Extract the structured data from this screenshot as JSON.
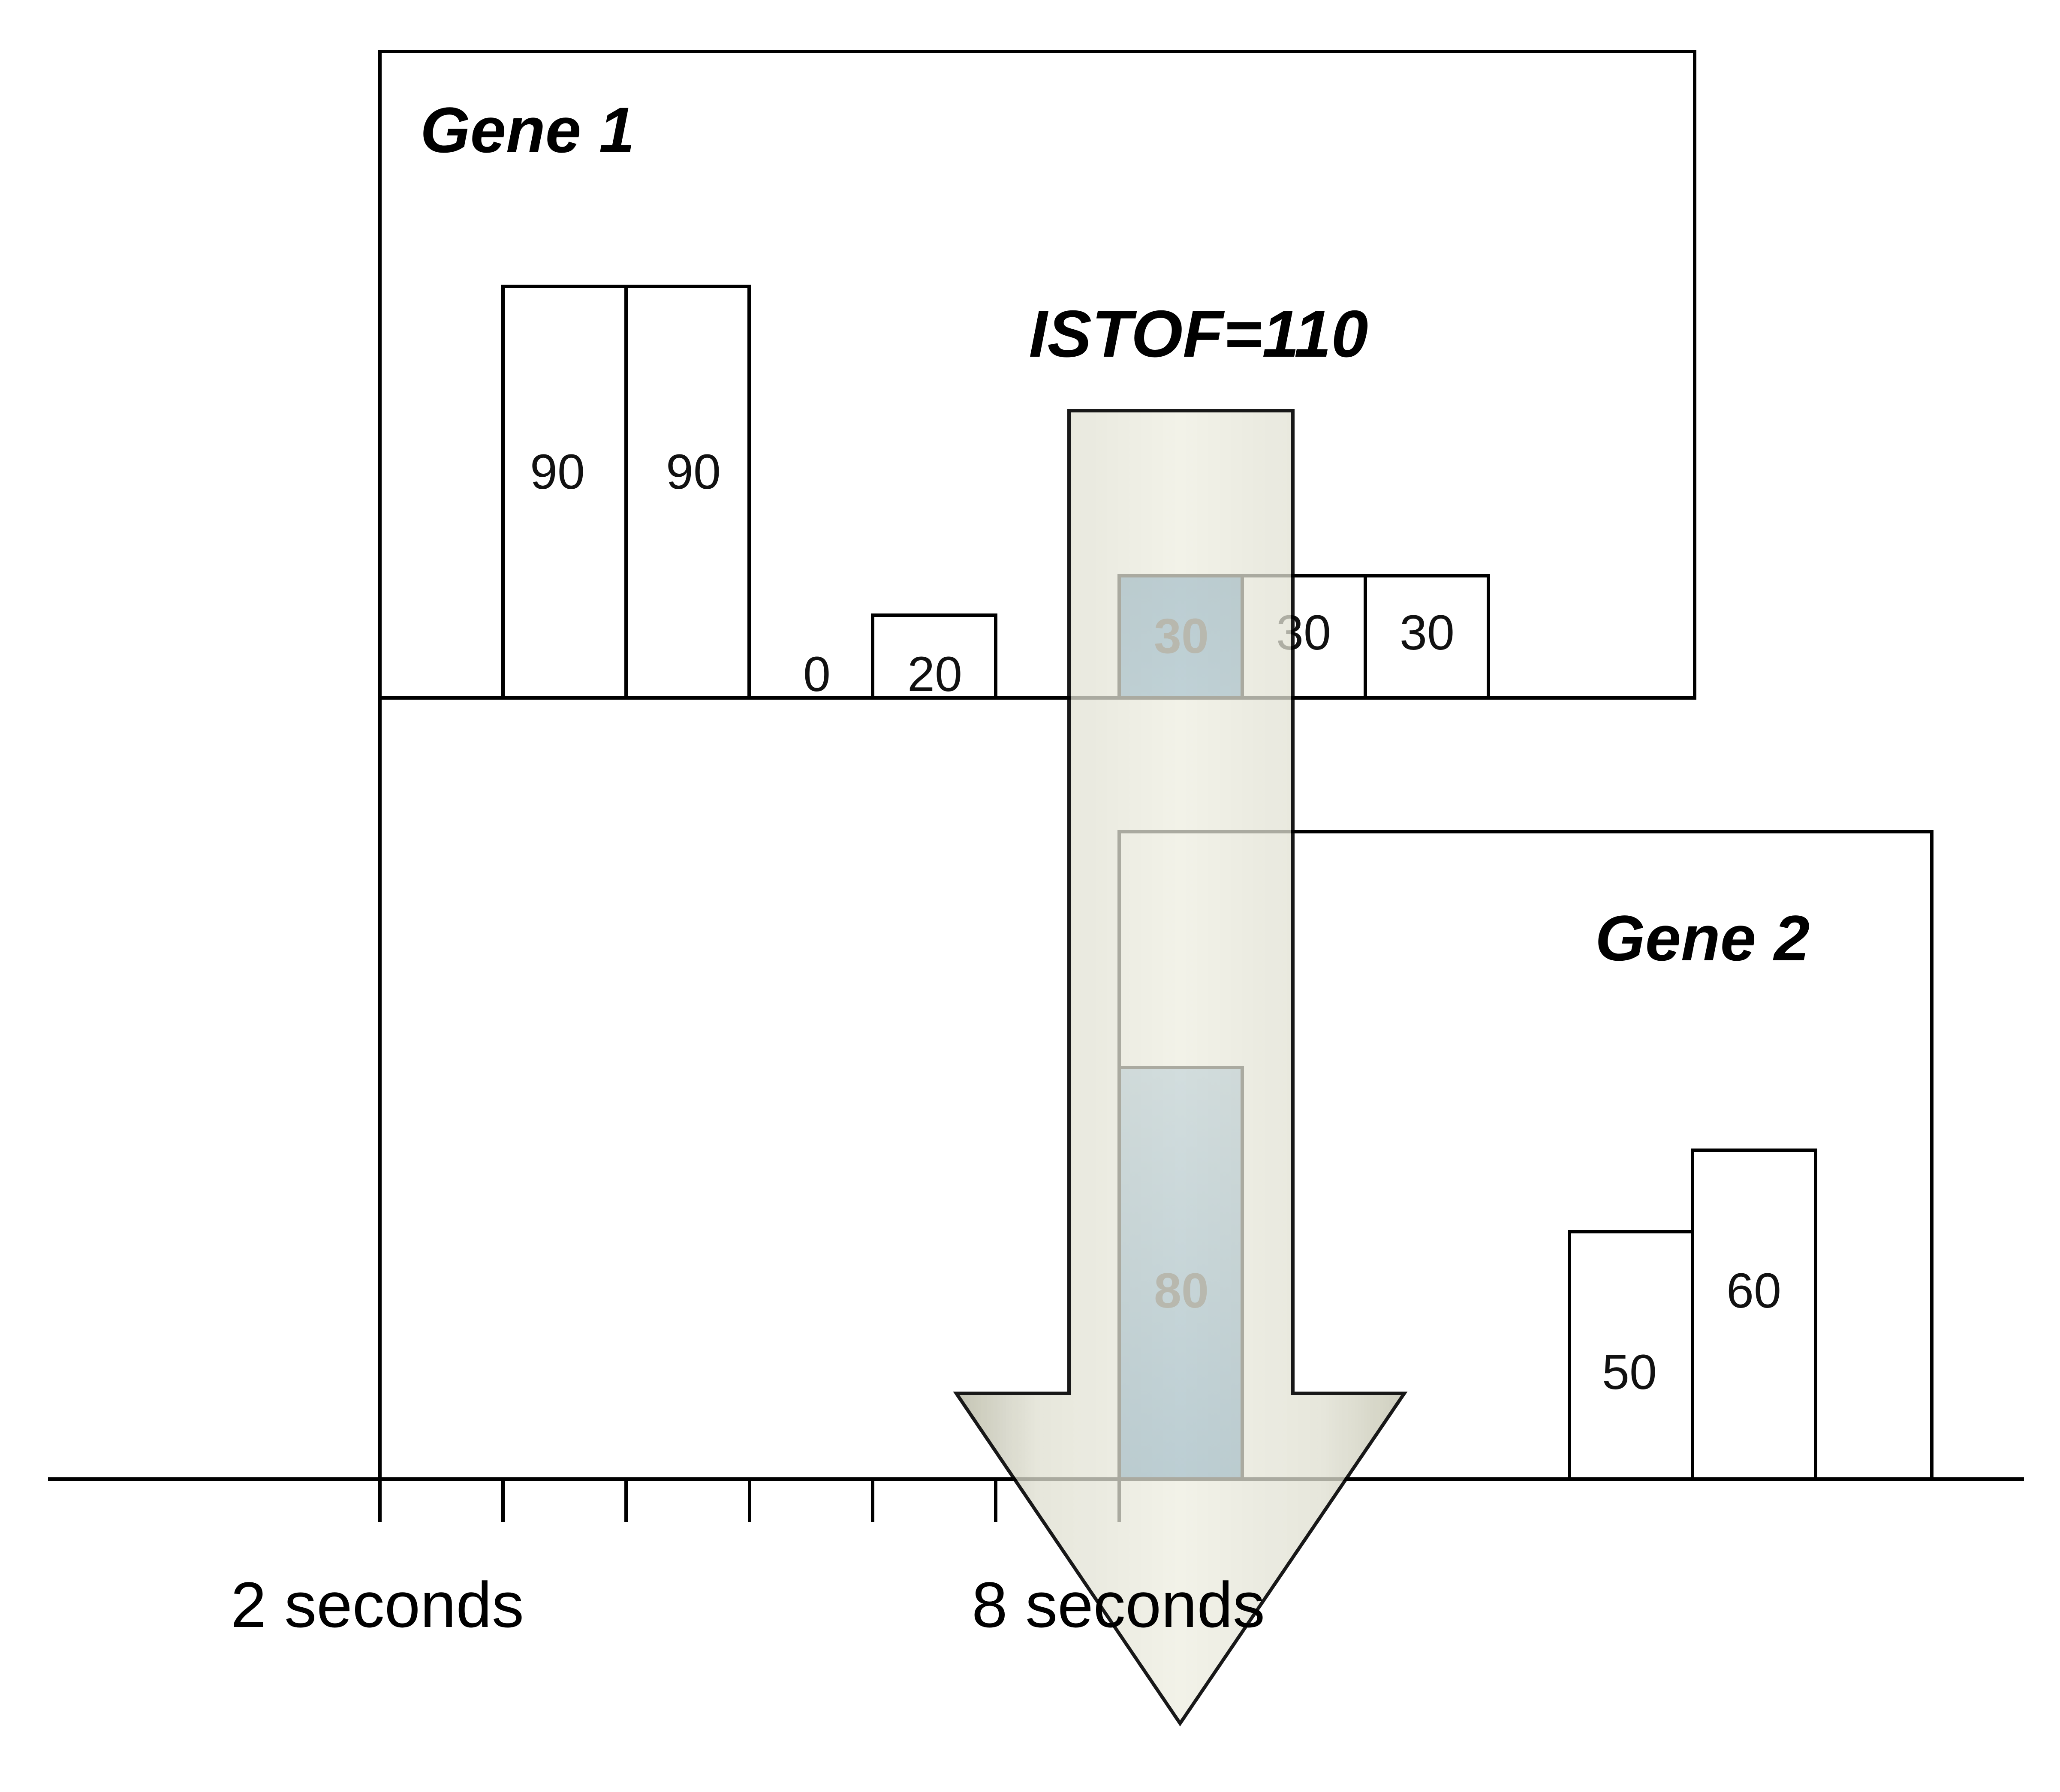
{
  "gene1": {
    "title": "Gene 1",
    "bars": [
      {
        "value": 90,
        "label": "90",
        "highlight": false
      },
      {
        "value": 90,
        "label": "90",
        "highlight": false
      },
      {
        "value": 0,
        "label": "0",
        "highlight": false
      },
      {
        "value": 20,
        "label": "20",
        "highlight": false
      },
      {
        "value": 30,
        "label": "30",
        "highlight": true
      },
      {
        "value": 30,
        "label": "30",
        "highlight": false
      },
      {
        "value": 30,
        "label": "30",
        "highlight": false
      }
    ]
  },
  "gene2": {
    "title": "Gene 2",
    "bars": [
      {
        "value": 80,
        "label": "80",
        "highlight": true
      },
      {
        "value": 50,
        "label": "50",
        "highlight": false
      },
      {
        "value": 60,
        "label": "60",
        "highlight": false
      }
    ]
  },
  "annotation": {
    "label": "ISTOF=110"
  },
  "time_axis": {
    "labels": [
      "2 seconds",
      "8 seconds"
    ]
  },
  "colors": {
    "highlight_fill": "#4a86b8",
    "arrow_fill": "#e6e6d6",
    "stroke": "#000000"
  }
}
